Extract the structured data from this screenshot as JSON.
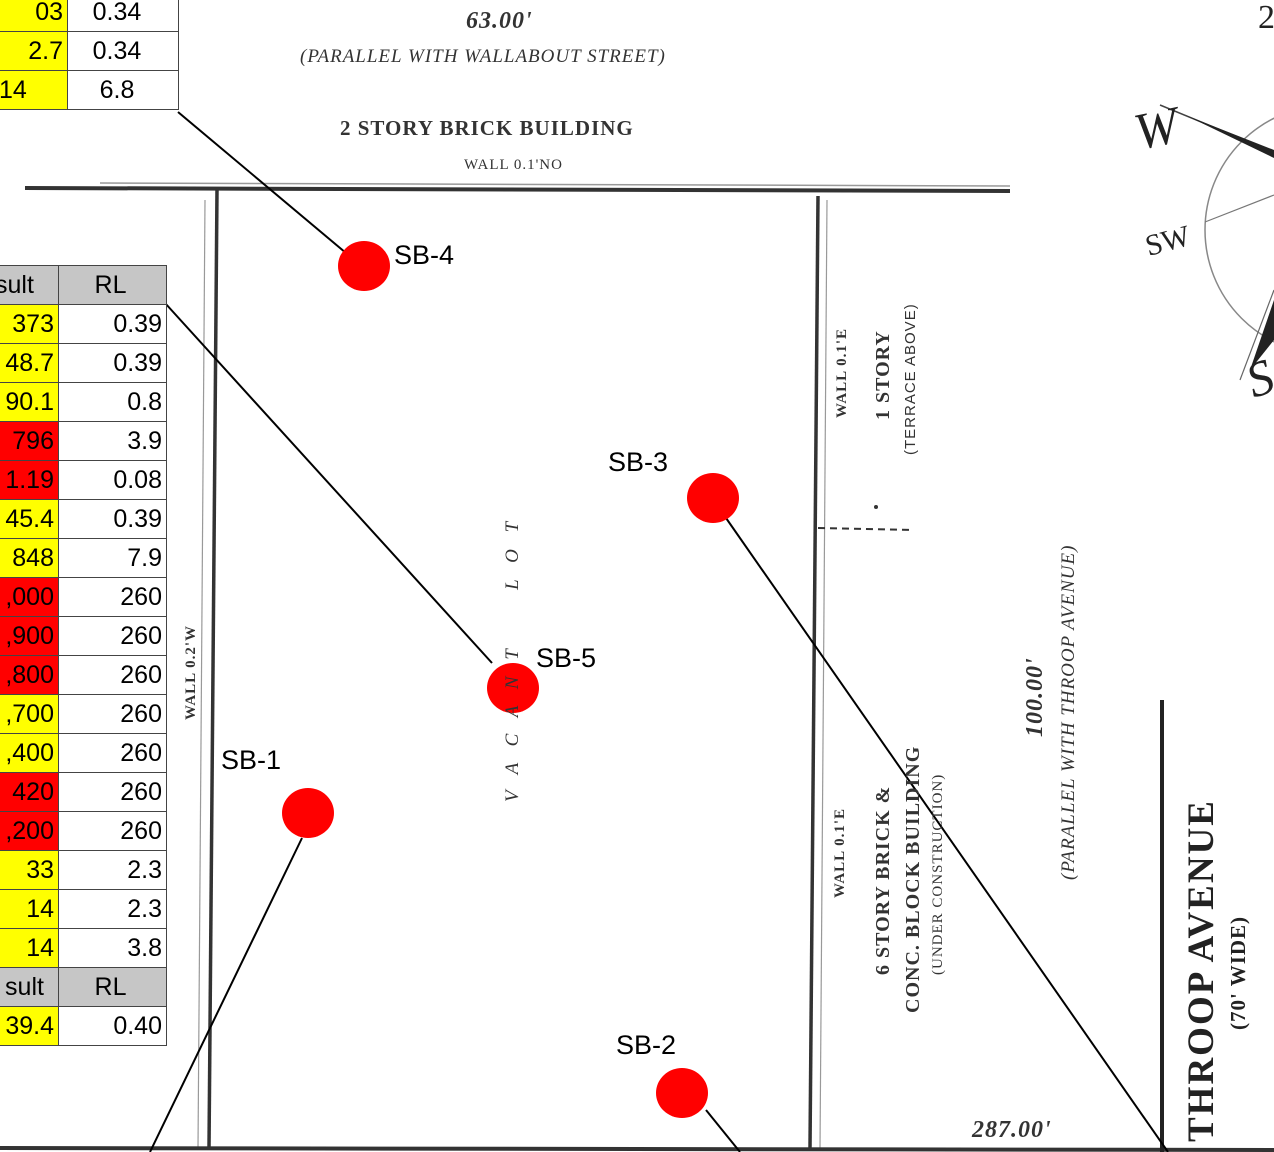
{
  "top_table": {
    "rows": [
      {
        "result": "03",
        "rl": "0.34",
        "status": "yellow"
      },
      {
        "result": "2.7",
        "rl": "0.34",
        "status": "yellow"
      },
      {
        "result": "14",
        "rl": "6.8",
        "status": "yellow"
      }
    ]
  },
  "main_table": {
    "header_result": "sult",
    "header_rl": "RL",
    "rows": [
      {
        "result": "373",
        "rl": "0.39",
        "status": "yellow"
      },
      {
        "result": "48.7",
        "rl": "0.39",
        "status": "yellow"
      },
      {
        "result": "90.1",
        "rl": "0.8",
        "status": "yellow"
      },
      {
        "result": "796",
        "rl": "3.9",
        "status": "red"
      },
      {
        "result": "1.19",
        "rl": "0.08",
        "status": "red"
      },
      {
        "result": "45.4",
        "rl": "0.39",
        "status": "yellow"
      },
      {
        "result": "848",
        "rl": "7.9",
        "status": "yellow"
      },
      {
        "result": ",000",
        "rl": "260",
        "status": "red"
      },
      {
        "result": ",900",
        "rl": "260",
        "status": "red"
      },
      {
        "result": ",800",
        "rl": "260",
        "status": "red"
      },
      {
        "result": ",700",
        "rl": "260",
        "status": "yellow"
      },
      {
        "result": ",400",
        "rl": "260",
        "status": "yellow"
      },
      {
        "result": "420",
        "rl": "260",
        "status": "red"
      },
      {
        "result": ",200",
        "rl": "260",
        "status": "red"
      },
      {
        "result": "33",
        "rl": "2.3",
        "status": "yellow"
      },
      {
        "result": "14",
        "rl": "2.3",
        "status": "yellow"
      },
      {
        "result": "14",
        "rl": "3.8",
        "status": "yellow"
      }
    ],
    "header2_result": "sult",
    "header2_rl": "RL",
    "last_row": {
      "result": "39.4",
      "rl": "0.40",
      "status": "yellow"
    }
  },
  "colors": {
    "yellow": "#ffff00",
    "red": "#ff0000",
    "header": "#c6c6c6",
    "boring": "#ff0000"
  },
  "borings": [
    {
      "id": "SB-1"
    },
    {
      "id": "SB-2"
    },
    {
      "id": "SB-3"
    },
    {
      "id": "SB-4"
    },
    {
      "id": "SB-5"
    }
  ],
  "annotations": {
    "top_dimension": "63.00'",
    "top_parallel": "(PARALLEL WITH WALLABOUT STREET)",
    "north_building": "2 STORY BRICK BUILDING",
    "north_wall": "WALL 0.1'NO",
    "west_wall": "WALL 0.2'W",
    "east_wall_upper": "WALL 0.1'E",
    "east_wall_lower": "WALL 0.1'E",
    "vacant_lot": "V A C A N T     L O T",
    "one_story": "1 STORY",
    "terrace": "(TERRACE ABOVE)",
    "six_story_1": "6 STORY BRICK &",
    "six_story_2": "CONC. BLOCK BUILDING",
    "under_construction": "(UNDER CONSTRUCTION)",
    "side_dimension": "100.00'",
    "side_parallel": "(PARALLEL WITH THROOP AVENUE)",
    "street_name": "THROOP AVENUE",
    "street_width": "(70' WIDE)",
    "bottom_dimension": "287.00'"
  },
  "compass": {
    "west": "W",
    "southwest": "SW",
    "south": "S"
  }
}
